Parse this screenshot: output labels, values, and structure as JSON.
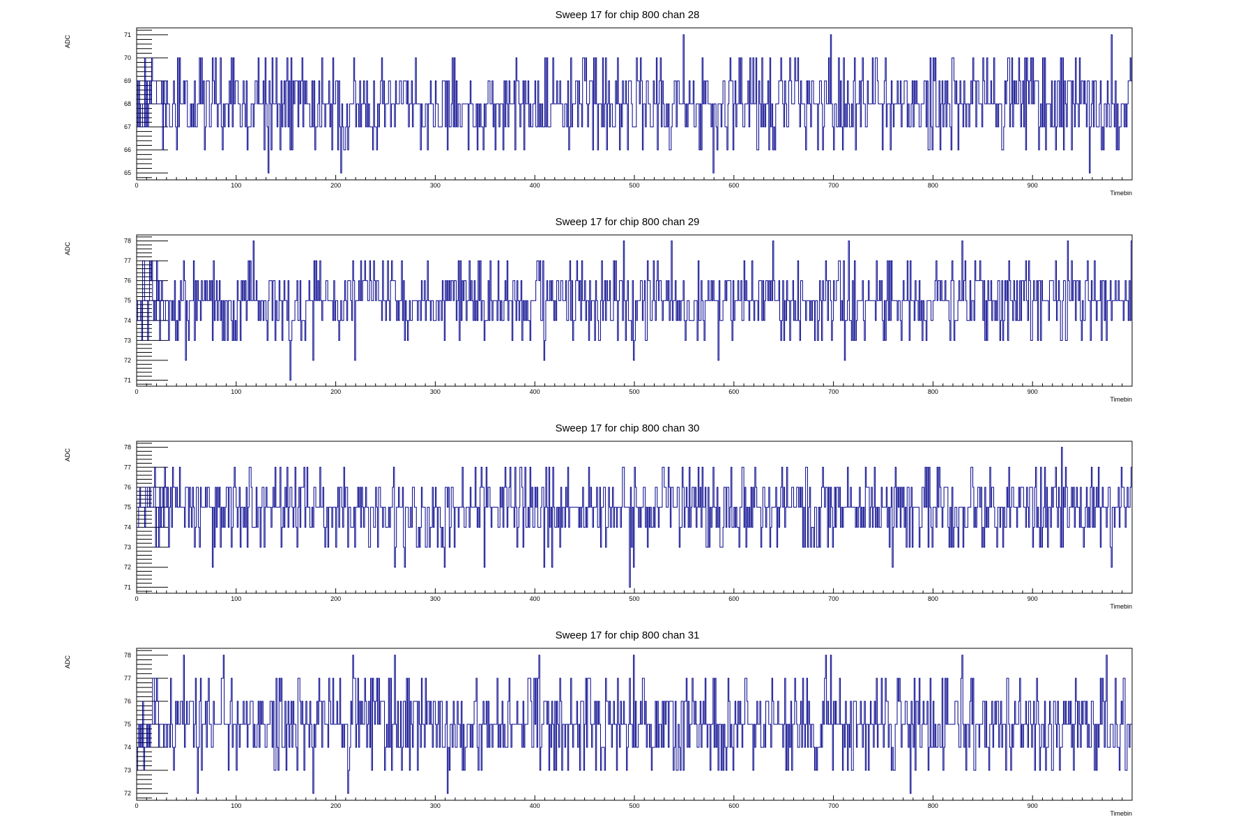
{
  "chart_data": [
    {
      "type": "line",
      "title": "Sweep 17 for chip 800 chan 28",
      "xlabel": "Timebin",
      "ylabel": "ADC",
      "xlim": [
        0,
        1000
      ],
      "ylim": [
        64.7,
        71.3
      ],
      "xticks": [
        0,
        100,
        200,
        300,
        400,
        500,
        600,
        700,
        800,
        900
      ],
      "yticks": [
        65,
        66,
        67,
        68,
        69,
        70,
        71
      ],
      "baseline": 67.7,
      "seed": 28,
      "series": [
        {
          "values": [],
          "spikes": [
            [
              133,
              65
            ],
            [
              206,
              65
            ],
            [
              550,
              71
            ],
            [
              580,
              65
            ],
            [
              698,
              71
            ],
            [
              958,
              65
            ],
            [
              980,
              71
            ],
            [
              600,
              66
            ],
            [
              42,
              70
            ],
            [
              80,
              70
            ],
            [
              130,
              70
            ],
            [
              210,
              66
            ],
            [
              460,
              70
            ],
            [
              740,
              70
            ],
            [
              820,
              70
            ],
            [
              1000,
              69
            ]
          ]
        }
      ],
      "grid": false,
      "line_color": "#00008b"
    },
    {
      "type": "line",
      "title": "Sweep 17 for chip 800 chan 29",
      "xlabel": "Timebin",
      "ylabel": "ADC",
      "xlim": [
        0,
        1000
      ],
      "ylim": [
        70.7,
        78.3
      ],
      "xticks": [
        0,
        100,
        200,
        300,
        400,
        500,
        600,
        700,
        800,
        900
      ],
      "yticks": [
        71,
        72,
        73,
        74,
        75,
        76,
        77,
        78
      ],
      "baseline": 75.0,
      "seed": 29,
      "series": [
        {
          "values": [],
          "spikes": [
            [
              155,
              71
            ],
            [
              118,
              78
            ],
            [
              220,
              78
            ],
            [
              50,
              72
            ],
            [
              178,
              72
            ],
            [
              220,
              72
            ],
            [
              410,
              72
            ],
            [
              500,
              72
            ],
            [
              585,
              72
            ],
            [
              712,
              72
            ],
            [
              490,
              78
            ],
            [
              538,
              78
            ],
            [
              640,
              78
            ],
            [
              716,
              78
            ],
            [
              830,
              78
            ],
            [
              936,
              78
            ],
            [
              1000,
              78
            ],
            [
              40,
              73
            ],
            [
              975,
              73
            ]
          ]
        }
      ],
      "grid": false,
      "line_color": "#00008b"
    },
    {
      "type": "line",
      "title": "Sweep 17 for chip 800 chan 30",
      "xlabel": "Timebin",
      "ylabel": "ADC",
      "xlim": [
        0,
        1000
      ],
      "ylim": [
        70.7,
        78.3
      ],
      "xticks": [
        0,
        100,
        200,
        300,
        400,
        500,
        600,
        700,
        800,
        900
      ],
      "yticks": [
        71,
        72,
        73,
        74,
        75,
        76,
        77,
        78
      ],
      "baseline": 74.8,
      "seed": 30,
      "series": [
        {
          "values": [],
          "spikes": [
            [
              496,
              71
            ],
            [
              930,
              78
            ],
            [
              77,
              72
            ],
            [
              260,
              72
            ],
            [
              270,
              72
            ],
            [
              310,
              72
            ],
            [
              350,
              72
            ],
            [
              410,
              72
            ],
            [
              418,
              72
            ],
            [
              500,
              72
            ],
            [
              530,
              72
            ],
            [
              760,
              72
            ],
            [
              980,
              72
            ],
            [
              115,
              77
            ],
            [
              140,
              77
            ],
            [
              160,
              77
            ],
            [
              172,
              77
            ],
            [
              412,
              77
            ],
            [
              530,
              77
            ],
            [
              580,
              77
            ],
            [
              690,
              77
            ],
            [
              840,
              77
            ],
            [
              960,
              77
            ],
            [
              990,
              77
            ],
            [
              20,
              73
            ]
          ]
        }
      ],
      "grid": false,
      "line_color": "#00008b"
    },
    {
      "type": "line",
      "title": "Sweep 17 for chip 800 chan 31",
      "xlabel": "Timebin",
      "ylabel": "ADC",
      "xlim": [
        0,
        1000
      ],
      "ylim": [
        71.7,
        78.3
      ],
      "xticks": [
        0,
        100,
        200,
        300,
        400,
        500,
        600,
        700,
        800,
        900
      ],
      "yticks": [
        72,
        73,
        74,
        75,
        76,
        77,
        78
      ],
      "baseline": 75.2,
      "seed": 31,
      "series": [
        {
          "values": [],
          "spikes": [
            [
              62,
              72
            ],
            [
              178,
              72
            ],
            [
              213,
              72
            ],
            [
              313,
              72
            ],
            [
              778,
              72
            ],
            [
              48,
              78
            ],
            [
              88,
              78
            ],
            [
              218,
              78
            ],
            [
              405,
              78
            ],
            [
              500,
              78
            ],
            [
              693,
              78
            ],
            [
              698,
              78
            ],
            [
              830,
              78
            ],
            [
              143,
              73
            ],
            [
              450,
              73
            ],
            [
              540,
              73
            ],
            [
              600,
              73
            ],
            [
              620,
              73
            ],
            [
              700,
              73
            ],
            [
              720,
              73
            ],
            [
              965,
              73
            ],
            [
              995,
              73
            ],
            [
              260,
              78
            ],
            [
              975,
              78
            ]
          ]
        }
      ],
      "grid": false,
      "line_color": "#00008b"
    }
  ]
}
